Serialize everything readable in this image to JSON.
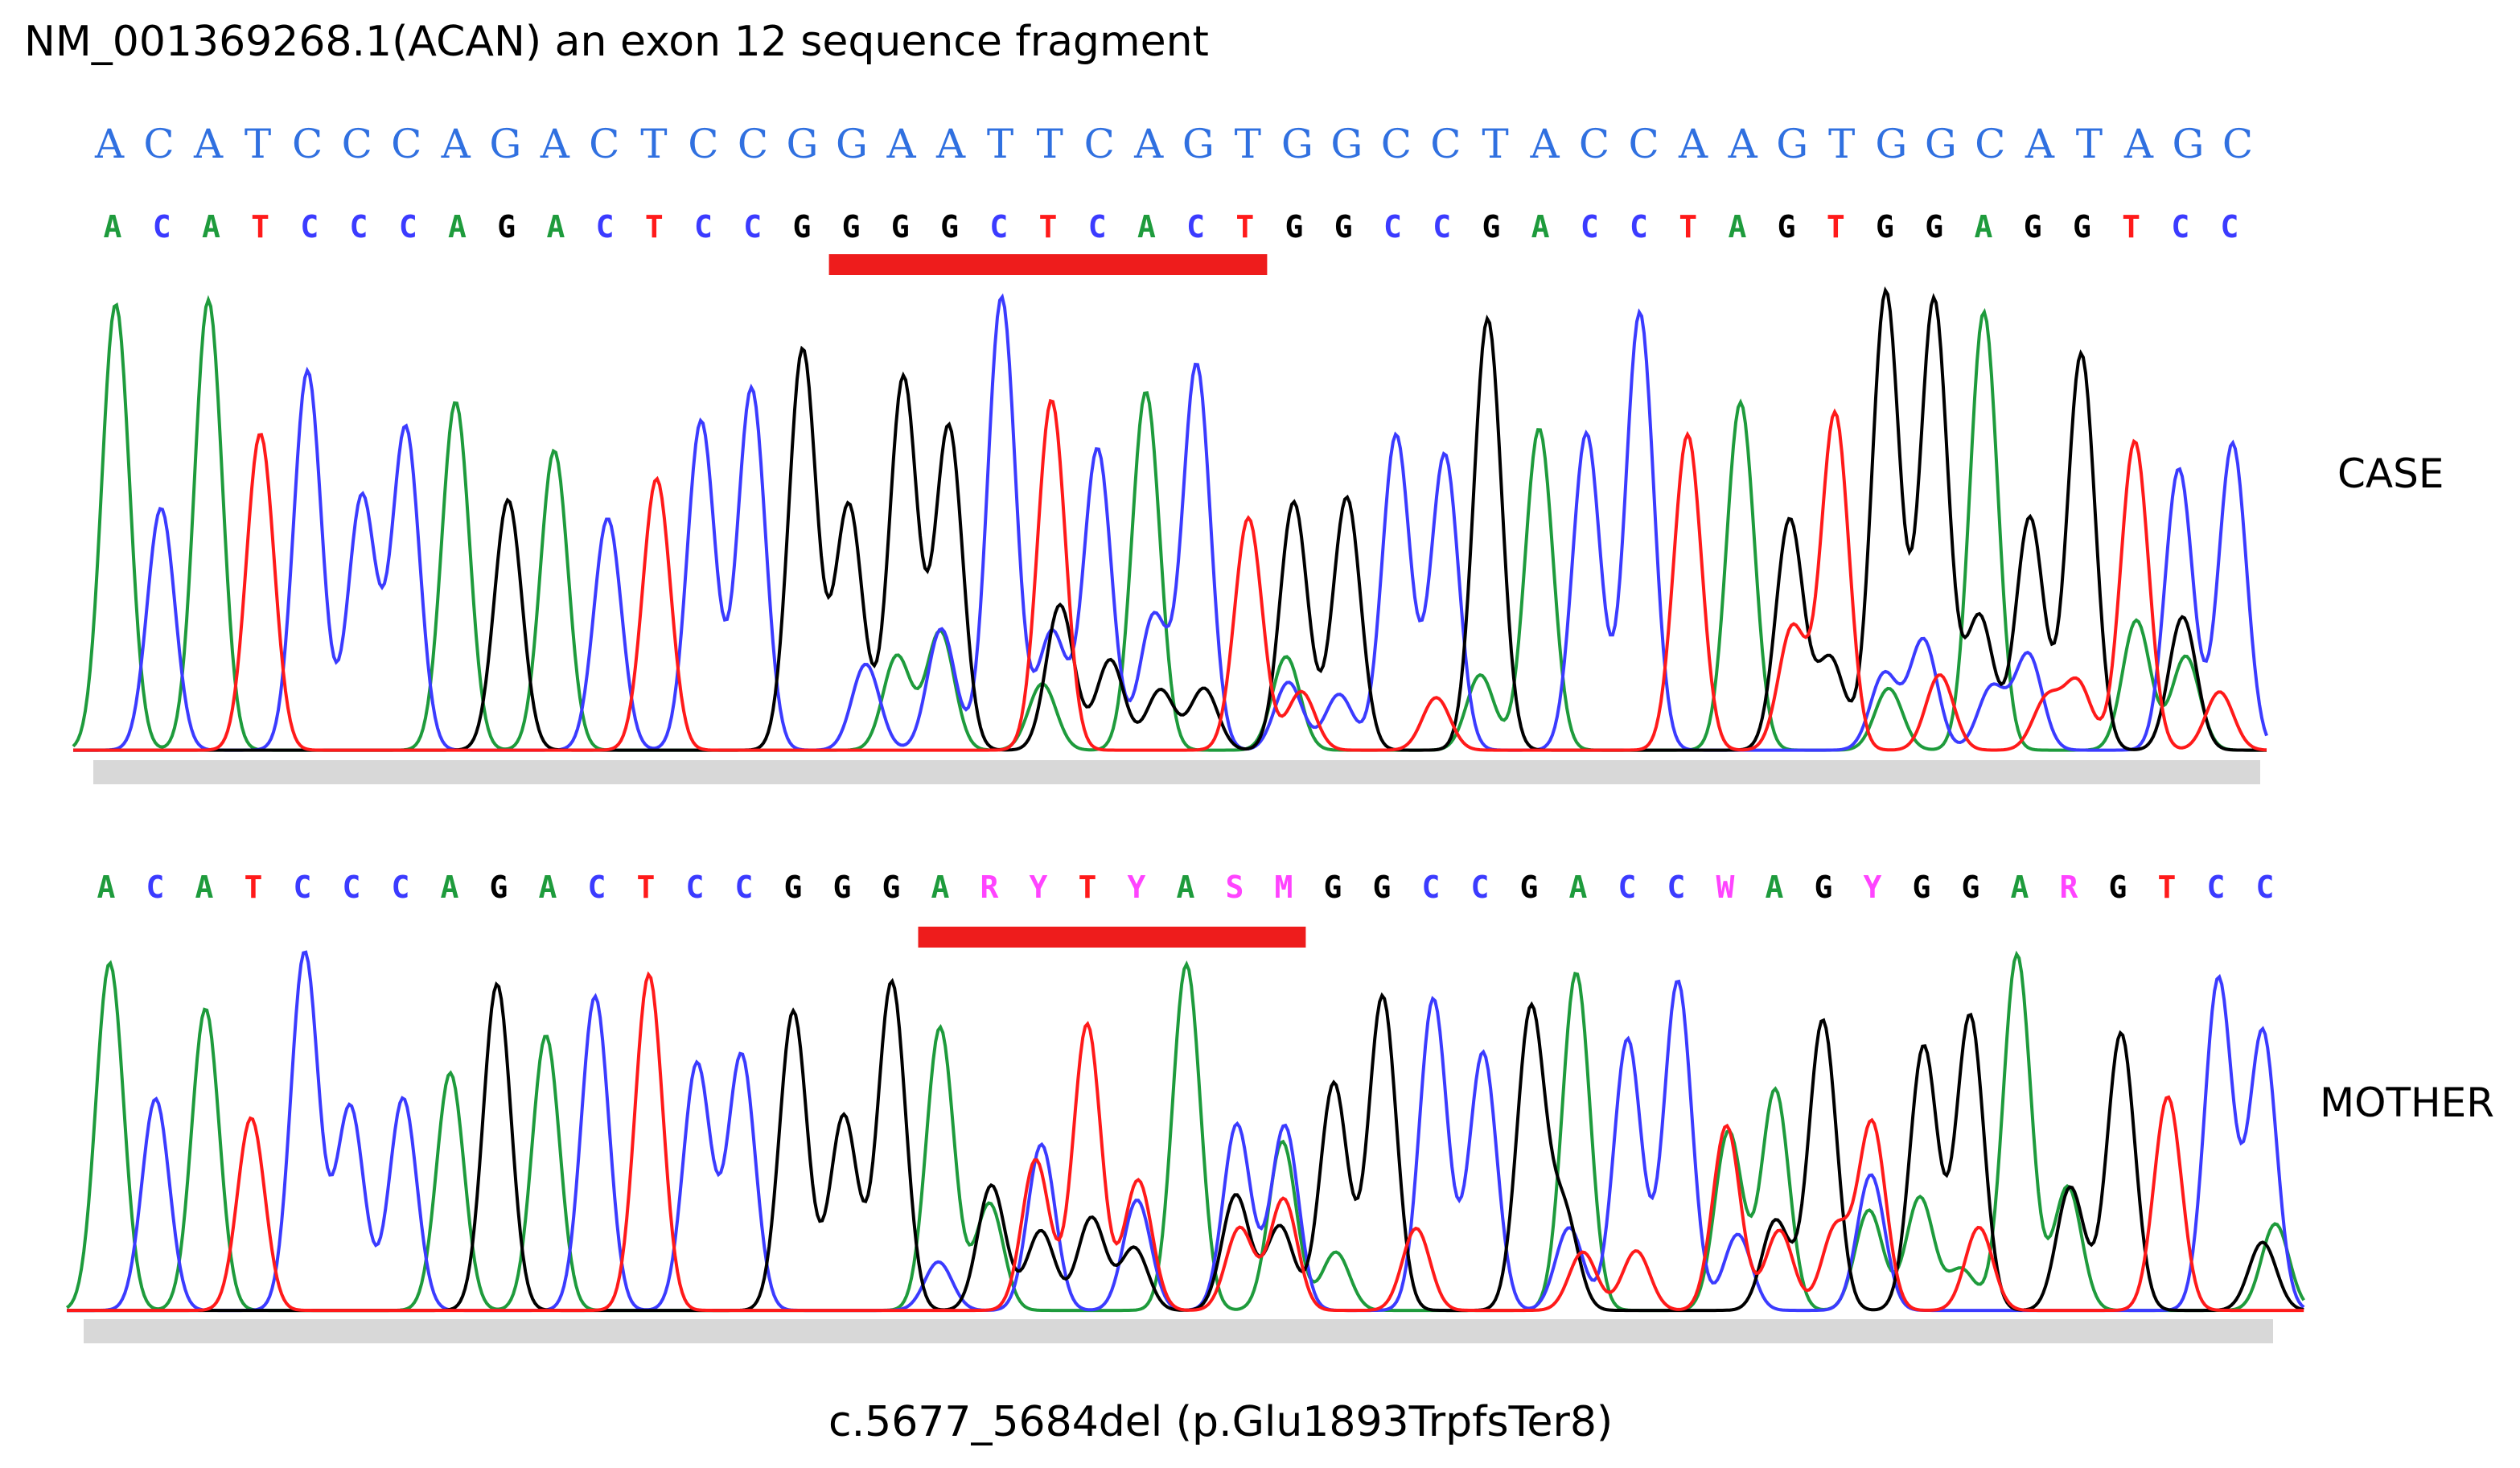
{
  "title": "NM_001369268.1(ACAN) an exon 12 sequence fragment",
  "reference_sequence": [
    "A",
    "C",
    "A",
    "T",
    "C",
    "C",
    "C",
    "A",
    "G",
    "A",
    "C",
    "T",
    "C",
    "C",
    "G",
    "G",
    "A",
    "A",
    "T",
    "T",
    "C",
    "A",
    "G",
    "T",
    "G",
    "G",
    "C",
    "C",
    "T",
    "A",
    "C",
    "C",
    "A",
    "A",
    "G",
    "T",
    "G",
    "G",
    "C",
    "A",
    "T",
    "A",
    "G",
    "C"
  ],
  "case": {
    "label": "CASE",
    "bases": [
      "A",
      "C",
      "A",
      "T",
      "C",
      "C",
      "C",
      "A",
      "G",
      "A",
      "C",
      "T",
      "C",
      "C",
      "G",
      "G",
      "G",
      "G",
      "C",
      "T",
      "C",
      "A",
      "C",
      "T",
      "G",
      "G",
      "C",
      "C",
      "G",
      "A",
      "C",
      "C",
      "T",
      "A",
      "G",
      "T",
      "G",
      "G",
      "A",
      "G",
      "G",
      "T",
      "C",
      "C"
    ],
    "highlight_range": [
      15,
      23
    ]
  },
  "mother": {
    "label": "MOTHER",
    "bases": [
      "A",
      "C",
      "A",
      "T",
      "C",
      "C",
      "C",
      "A",
      "G",
      "A",
      "C",
      "T",
      "C",
      "C",
      "G",
      "G",
      "G",
      "A",
      "R",
      "Y",
      "T",
      "Y",
      "A",
      "S",
      "M",
      "G",
      "G",
      "C",
      "C",
      "G",
      "A",
      "C",
      "C",
      "W",
      "A",
      "G",
      "Y",
      "G",
      "G",
      "A",
      "R",
      "G",
      "T",
      "C",
      "C"
    ],
    "highlight_range": [
      17,
      24
    ]
  },
  "colors": {
    "A": "#1e9b3c",
    "C": "#3b3bff",
    "G": "#000000",
    "T": "#ff1a1a",
    "ambiguous": "#ff44ff",
    "reference": "#3070e0",
    "highlight": "#ee1c1c",
    "baseline": "#d8d8d8"
  },
  "caption": "c.5677_5684del (p.Glu1893TrpfsTer8)"
}
